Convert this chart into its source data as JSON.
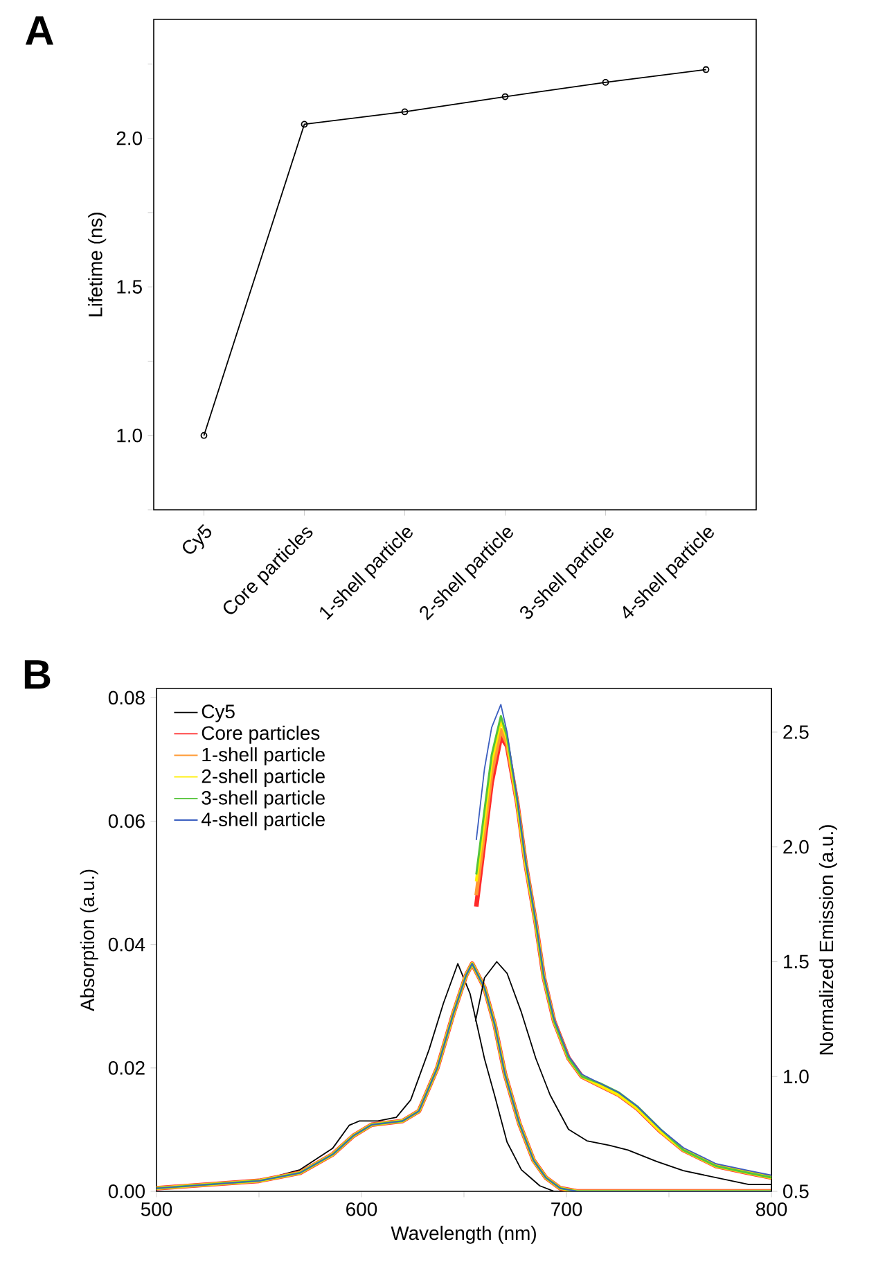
{
  "chart_data": [
    {
      "type": "line",
      "title": "A",
      "ylabel": "Lifetime (ns)",
      "categories": [
        "Cy5",
        "Core particles",
        "1-shell particle",
        "2-shell particle",
        "3-shell particle",
        "4-shell particle"
      ],
      "series": [
        {
          "color": "#000000",
          "values": [
            1.0,
            2.047,
            2.089,
            2.14,
            2.188,
            2.231
          ]
        }
      ],
      "ylim": [
        0.75,
        2.4
      ],
      "yticks": [
        {
          "value": 0.75,
          "label": null
        },
        {
          "value": 1,
          "label": "1.0"
        },
        {
          "value": 1.25,
          "label": null
        },
        1.5,
        {
          "value": 1.75,
          "label": null
        },
        {
          "value": 2,
          "label": "2.0"
        },
        {
          "value": 2.25,
          "label": null
        }
      ],
      "marker": "circle",
      "grid": false,
      "legend": false
    },
    {
      "type": "line",
      "title": "B",
      "xlabel": "Wavelength (nm)",
      "ylabel": "Absorption (a.u.)",
      "y2label": "Normalized Emission (a.u.)",
      "xlim": [
        500,
        800
      ],
      "xticks": [
        500,
        {
          "value": 550,
          "label": null
        },
        600,
        {
          "value": 650,
          "label": null
        },
        700,
        {
          "value": 750,
          "label": null
        },
        800
      ],
      "ylim": [
        0,
        0.0815
      ],
      "yticks": [
        {
          "value": 0,
          "label": "0.00"
        },
        0.02,
        0.04,
        0.06,
        0.08
      ],
      "y2lim": [
        0.5,
        2.69
      ],
      "y2ticks": [
        0.5,
        {
          "value": 1,
          "label": "1.0"
        },
        1.5,
        {
          "value": 2,
          "label": "2.0"
        },
        2.5
      ],
      "legend": "top left",
      "grid": false,
      "marker": "none",
      "series": [
        {
          "name": "Cy5",
          "color": "#000000",
          "x": [
            500,
            550,
            570,
            586,
            594,
            599,
            608,
            617,
            624,
            633,
            640,
            647,
            653,
            660,
            665,
            671,
            678,
            687,
            694,
            800
          ],
          "values": [
            0.0005,
            0.0017,
            0.0035,
            0.007,
            0.0107,
            0.0114,
            0.0114,
            0.012,
            0.0148,
            0.023,
            0.0305,
            0.0369,
            0.032,
            0.0215,
            0.0155,
            0.008,
            0.0035,
            0.0009,
            0,
            0
          ]
        },
        {
          "name": "Core particles",
          "color": "#ff2a2a",
          "x": [
            500,
            550,
            570,
            586,
            596,
            605,
            620,
            628,
            637,
            645,
            651,
            654,
            660,
            665,
            670,
            677,
            684,
            690,
            697,
            705,
            800
          ],
          "values": [
            0.0005,
            0.0017,
            0.003,
            0.006,
            0.009,
            0.0108,
            0.0114,
            0.013,
            0.02,
            0.029,
            0.035,
            0.0369,
            0.033,
            0.027,
            0.019,
            0.011,
            0.005,
            0.0022,
            0.0005,
            0,
            0
          ]
        },
        {
          "name": "1-shell particle",
          "color": "#ff9933",
          "x": [
            500,
            550,
            570,
            586,
            596,
            605,
            620,
            628,
            637,
            645,
            651,
            654,
            660,
            665,
            670,
            677,
            684,
            690,
            697,
            705,
            800
          ],
          "values": [
            0.0005,
            0.0017,
            0.003,
            0.006,
            0.009,
            0.0108,
            0.0114,
            0.013,
            0.02,
            0.029,
            0.035,
            0.0369,
            0.033,
            0.027,
            0.019,
            0.011,
            0.005,
            0.0022,
            0.0005,
            0,
            0
          ]
        },
        {
          "name": "2-shell particle",
          "color": "#ffee00",
          "x": [
            500,
            550,
            570,
            586,
            596,
            605,
            620,
            628,
            637,
            645,
            651,
            654,
            660,
            665,
            670,
            677,
            684,
            690,
            697,
            705,
            800
          ],
          "values": [
            0.0005,
            0.0017,
            0.003,
            0.006,
            0.009,
            0.0108,
            0.0114,
            0.013,
            0.02,
            0.029,
            0.035,
            0.0369,
            0.033,
            0.027,
            0.019,
            0.011,
            0.005,
            0.0022,
            0.0005,
            0,
            0
          ]
        },
        {
          "name": "3-shell particle",
          "color": "#55c43a",
          "x": [
            500,
            550,
            570,
            586,
            596,
            605,
            620,
            628,
            637,
            645,
            651,
            654,
            660,
            665,
            670,
            677,
            684,
            690,
            697,
            705,
            800
          ],
          "values": [
            0.0005,
            0.0017,
            0.003,
            0.006,
            0.009,
            0.0108,
            0.0114,
            0.013,
            0.02,
            0.029,
            0.035,
            0.0369,
            0.033,
            0.027,
            0.019,
            0.011,
            0.005,
            0.0022,
            0.0005,
            0,
            0
          ]
        },
        {
          "name": "4-shell particle",
          "color": "#3b5fc0",
          "x": [
            500,
            550,
            570,
            586,
            596,
            605,
            620,
            628,
            637,
            645,
            651,
            654,
            660,
            665,
            670,
            677,
            684,
            690,
            697,
            705,
            800
          ],
          "values": [
            0.0005,
            0.0017,
            0.003,
            0.006,
            0.009,
            0.0108,
            0.0114,
            0.013,
            0.02,
            0.029,
            0.035,
            0.0369,
            0.033,
            0.027,
            0.019,
            0.011,
            0.005,
            0.0022,
            0.0005,
            0,
            0
          ]
        },
        {
          "axis": "y2",
          "color": "#000000",
          "x": [
            655.6,
            660,
            666,
            671,
            678,
            685,
            692,
            701,
            710,
            721,
            730,
            744,
            757,
            773,
            789,
            800
          ],
          "values": [
            1.24,
            1.43,
            1.5,
            1.45,
            1.28,
            1.08,
            0.92,
            0.77,
            0.72,
            0.7,
            0.68,
            0.63,
            0.59,
            0.56,
            0.53,
            0.53
          ]
        },
        {
          "axis": "y2",
          "color": "#ff2a2a",
          "x": [
            656,
            660,
            663.5,
            668,
            671,
            676,
            680,
            685,
            689,
            694,
            701,
            707.5,
            716.5,
            725.6,
            734.6,
            746,
            757,
            773,
            789,
            800
          ],
          "values": [
            1.74,
            2.03,
            2.28,
            2.48,
            2.44,
            2.19,
            1.93,
            1.67,
            1.43,
            1.24,
            1.08,
            1.0,
            0.96,
            0.92,
            0.86,
            0.76,
            0.68,
            0.61,
            0.58,
            0.56
          ]
        },
        {
          "axis": "y2",
          "color": "#ff9933",
          "x": [
            656,
            660,
            663.5,
            668,
            671,
            676,
            680,
            685,
            689,
            694,
            701,
            707.5,
            716.5,
            725.6,
            734.6,
            746,
            757,
            773,
            789,
            800
          ],
          "values": [
            1.79,
            2.07,
            2.32,
            2.51,
            2.45,
            2.19,
            1.93,
            1.67,
            1.43,
            1.24,
            1.08,
            1.0,
            0.96,
            0.92,
            0.86,
            0.76,
            0.68,
            0.61,
            0.58,
            0.56
          ]
        },
        {
          "axis": "y2",
          "color": "#ffee00",
          "x": [
            656,
            660,
            663.5,
            668,
            671,
            676,
            680,
            685,
            689,
            694,
            701,
            707.5,
            716.5,
            725.6,
            734.6,
            746,
            757,
            773,
            789,
            800
          ],
          "values": [
            1.85,
            2.12,
            2.37,
            2.55,
            2.47,
            2.19,
            1.93,
            1.67,
            1.43,
            1.24,
            1.08,
            1.0,
            0.96,
            0.92,
            0.86,
            0.76,
            0.68,
            0.61,
            0.58,
            0.56
          ]
        },
        {
          "axis": "y2",
          "color": "#55c43a",
          "x": [
            656,
            660,
            663.5,
            668,
            671,
            676,
            680,
            685,
            689,
            694,
            701,
            707.5,
            716.5,
            725.6,
            734.6,
            746,
            757,
            773,
            789,
            800
          ],
          "values": [
            1.88,
            2.16,
            2.4,
            2.57,
            2.48,
            2.2,
            1.94,
            1.67,
            1.43,
            1.24,
            1.08,
            1.0,
            0.97,
            0.93,
            0.87,
            0.77,
            0.68,
            0.61,
            0.58,
            0.56
          ]
        },
        {
          "axis": "y2",
          "color": "#3b5fc0",
          "x": [
            656,
            660,
            663.5,
            668,
            671,
            676,
            680,
            685,
            689,
            694,
            701,
            707.5,
            716.5,
            725.6,
            734.6,
            746,
            757,
            773,
            789,
            800
          ],
          "values": [
            2.03,
            2.34,
            2.52,
            2.62,
            2.5,
            2.21,
            1.94,
            1.68,
            1.44,
            1.25,
            1.09,
            1.01,
            0.97,
            0.93,
            0.87,
            0.77,
            0.69,
            0.62,
            0.59,
            0.57
          ]
        }
      ]
    }
  ]
}
